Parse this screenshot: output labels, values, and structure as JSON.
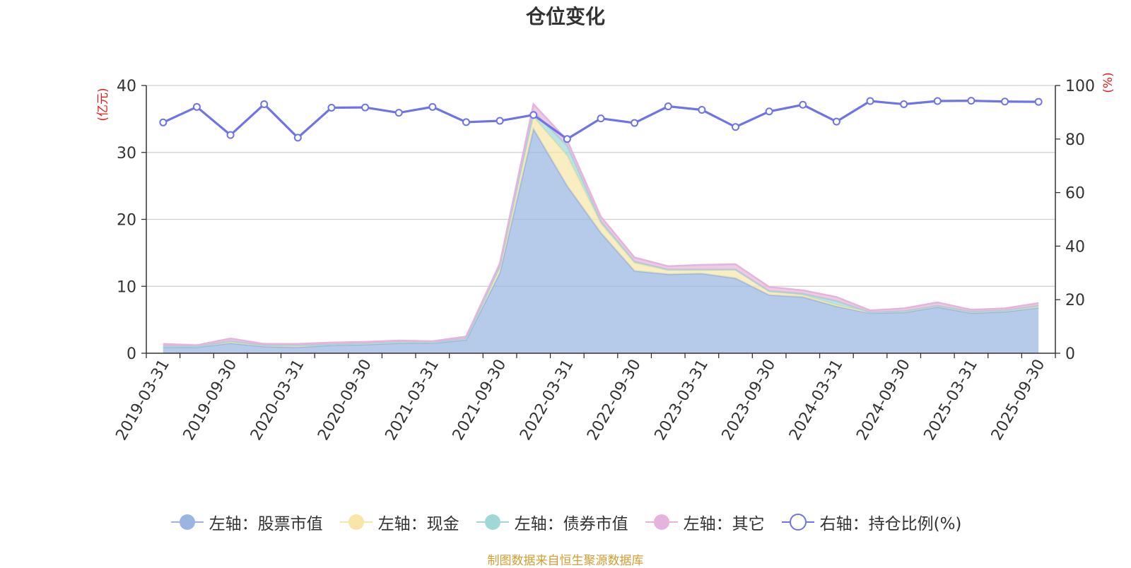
{
  "chart_data": {
    "type": "area",
    "title": "仓位变化",
    "source_note": "制图数据来自恒生聚源数据库",
    "categories": [
      "2019-03-31",
      "2019-06-30",
      "2019-09-30",
      "2019-12-31",
      "2020-03-31",
      "2020-06-30",
      "2020-09-30",
      "2020-12-31",
      "2021-03-31",
      "2021-06-30",
      "2021-09-30",
      "2021-12-31",
      "2022-03-31",
      "2022-06-30",
      "2022-09-30",
      "2022-12-31",
      "2023-03-31",
      "2023-06-30",
      "2023-09-30",
      "2023-12-31",
      "2024-03-31",
      "2024-06-30",
      "2024-09-30",
      "2024-12-31",
      "2025-03-31",
      "2025-06-30",
      "2025-09-30"
    ],
    "left_axis": {
      "label": "(亿元)",
      "range": [
        0,
        40
      ],
      "ticks": [
        0,
        10,
        20,
        30,
        40
      ]
    },
    "right_axis": {
      "label": "(%)",
      "range": [
        0,
        100
      ],
      "ticks": [
        0,
        20,
        40,
        60,
        80,
        100
      ]
    },
    "grid": true,
    "legend_position": "bottom",
    "series": [
      {
        "name": "左轴：股票市值",
        "axis": "left",
        "stacked": true,
        "color": "#9ab6e0",
        "values": [
          0.9,
          0.9,
          1.5,
          1.0,
          0.9,
          1.2,
          1.3,
          1.5,
          1.5,
          2.0,
          12.0,
          33.5,
          25.0,
          18.0,
          12.3,
          11.8,
          11.9,
          11.2,
          8.7,
          8.4,
          7.0,
          6.0,
          6.1,
          6.9,
          6.0,
          6.2,
          6.8
        ]
      },
      {
        "name": "左轴：现金",
        "axis": "left",
        "stacked": true,
        "color": "#f7e6a8",
        "values": [
          0.2,
          0.1,
          0.3,
          0.2,
          0.3,
          0.1,
          0.2,
          0.2,
          0.1,
          0.2,
          0.9,
          1.8,
          4.5,
          1.4,
          1.2,
          0.6,
          0.5,
          1.3,
          0.5,
          0.3,
          0.2,
          0.1,
          0.2,
          0.2,
          0.2,
          0.2,
          0.3
        ]
      },
      {
        "name": "左轴：债券市值",
        "axis": "left",
        "stacked": true,
        "color": "#9fd8d6",
        "values": [
          0,
          0,
          0,
          0,
          0,
          0,
          0,
          0,
          0,
          0,
          0.1,
          0.8,
          1.5,
          0.3,
          0.2,
          0.1,
          0.1,
          0,
          0.1,
          0.2,
          0.6,
          0,
          0,
          0,
          0,
          0,
          0
        ]
      },
      {
        "name": "左轴：其它",
        "axis": "left",
        "stacked": true,
        "color": "#e6b3dc",
        "values": [
          0.3,
          0.2,
          0.4,
          0.2,
          0.2,
          0.3,
          0.2,
          0.2,
          0.2,
          0.3,
          0.4,
          1.1,
          0.8,
          0.7,
          0.6,
          0.5,
          0.7,
          0.8,
          0.6,
          0.5,
          0.6,
          0.3,
          0.4,
          0.5,
          0.3,
          0.3,
          0.4
        ]
      },
      {
        "name": "右轴：持仓比例(%)",
        "axis": "right",
        "stacked": false,
        "color": "#6f73e8",
        "values": [
          86.2,
          92.0,
          81.5,
          93.0,
          80.5,
          91.7,
          91.8,
          89.8,
          92.0,
          86.3,
          86.8,
          89.0,
          80.0,
          87.7,
          86.0,
          92.2,
          90.9,
          84.5,
          90.3,
          92.8,
          86.5,
          94.2,
          93.0,
          94.2,
          94.3,
          94.0,
          93.9
        ]
      }
    ]
  }
}
